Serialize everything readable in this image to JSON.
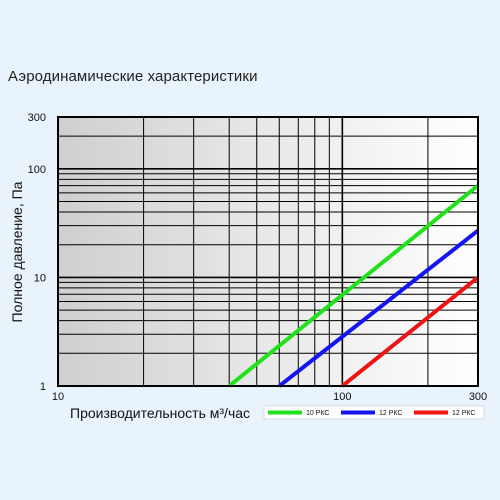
{
  "page": {
    "title": "Аэродинамические характеристики"
  },
  "chart_data": {
    "type": "line",
    "title": "Аэродинамические характеристики",
    "xlabel": "Производительность м³/час",
    "ylabel": "Полное давление, Па",
    "xscale": "log",
    "yscale": "log",
    "xlim": [
      10,
      300
    ],
    "ylim": [
      1,
      300
    ],
    "x_ticks": [
      {
        "value": 10,
        "label": "10"
      },
      {
        "value": 100,
        "label": "100"
      },
      {
        "value": 300,
        "label": "300"
      }
    ],
    "y_ticks": [
      {
        "value": 1,
        "label": "1"
      },
      {
        "value": 10,
        "label": "10"
      },
      {
        "value": 100,
        "label": "100"
      },
      {
        "value": 300,
        "label": "300"
      }
    ],
    "grid": true,
    "legend_position": "bottom-right",
    "series": [
      {
        "name": "10 РКС",
        "color": "#22e01c",
        "x": [
          40,
          300
        ],
        "y": [
          1,
          70
        ]
      },
      {
        "name": "12 РКС",
        "color": "#1515f2",
        "x": [
          60,
          300
        ],
        "y": [
          1,
          27
        ]
      },
      {
        "name": "12 РКС",
        "color": "#ee1414",
        "x": [
          100,
          300
        ],
        "y": [
          1,
          10
        ]
      }
    ]
  }
}
